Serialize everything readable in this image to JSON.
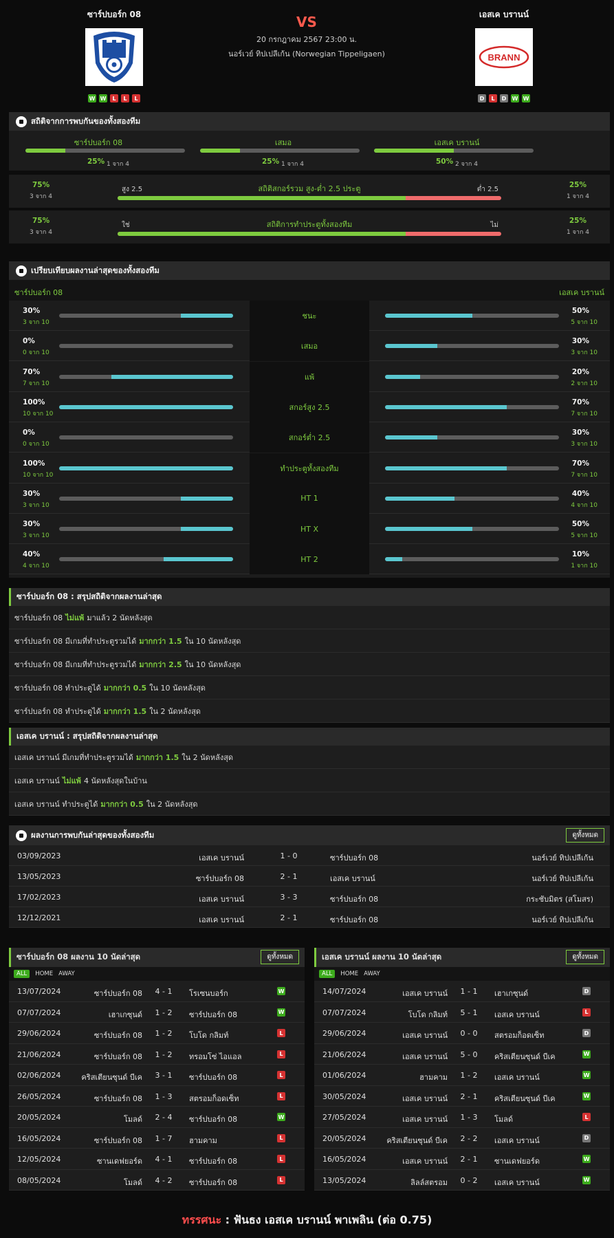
{
  "home": {
    "name": "ซาร์ปบอร์ก 08",
    "form": [
      "W",
      "W",
      "L",
      "L",
      "L"
    ]
  },
  "away": {
    "name": "เอสเค บรานน์",
    "form": [
      "D",
      "L",
      "D",
      "W",
      "W"
    ],
    "logo_text": "BRANN"
  },
  "match": {
    "vs": "VS",
    "date": "20 กรกฎาคม 2567 23:00 น.",
    "league": "นอร์เวย์ ทิปเปลีเก้น (Norwegian Tippeligaen)"
  },
  "h2h_stats": {
    "title": "สถิติจากการพบกันของทั้งสองทีม",
    "cols": [
      {
        "label": "ซาร์ปบอร์ก 08",
        "pct": "25%",
        "of": "1 จาก 4",
        "fill": 0.25
      },
      {
        "label": "เสมอ",
        "pct": "25%",
        "of": "1 จาก 4",
        "fill": 0.25
      },
      {
        "label": "เอสเค บรานน์",
        "pct": "50%",
        "of": "2 จาก 4",
        "fill": 0.5
      }
    ],
    "ou": {
      "title": "สถิติสกอร์รวม สูง-ต่ำ 2.5 ประตู",
      "left_label": "สูง 2.5",
      "right_label": "ต่ำ 2.5",
      "lp": "75%",
      "lo": "3 จาก 4",
      "rp": "25%",
      "ro": "1 จาก 4",
      "fill": 0.75
    },
    "bts": {
      "title": "สถิติการทำประตูทั้งสองทีม",
      "left_label": "ใช่",
      "right_label": "ไม่",
      "lp": "75%",
      "lo": "3 จาก 4",
      "rp": "25%",
      "ro": "1 จาก 4",
      "fill": 0.75
    }
  },
  "compare": {
    "title": "เปรียบเทียบผลงานล่าสุดของทั้งสองทีม",
    "left": "ซาร์ปบอร์ก 08",
    "right": "เอสเค บรานน์",
    "rows": [
      {
        "label": "ชนะ",
        "lp": "30%",
        "ls": "3 จาก 10",
        "lf": 0.3,
        "rp": "50%",
        "rs": "5 จาก 10",
        "rf": 0.5
      },
      {
        "label": "เสมอ",
        "lp": "0%",
        "ls": "0 จาก 10",
        "lf": 0,
        "rp": "30%",
        "rs": "3 จาก 10",
        "rf": 0.3
      },
      {
        "label": "แพ้",
        "lp": "70%",
        "ls": "7 จาก 10",
        "lf": 0.7,
        "rp": "20%",
        "rs": "2 จาก 10",
        "rf": 0.2
      },
      {
        "label": "สกอร์สูง 2.5",
        "lp": "100%",
        "ls": "10 จาก 10",
        "lf": 1,
        "rp": "70%",
        "rs": "7 จาก 10",
        "rf": 0.7
      },
      {
        "label": "สกอร์ต่ำ 2.5",
        "lp": "0%",
        "ls": "0 จาก 10",
        "lf": 0,
        "rp": "30%",
        "rs": "3 จาก 10",
        "rf": 0.3
      },
      {
        "label": "ทำประตูทั้งสองทีม",
        "lp": "100%",
        "ls": "10 จาก 10",
        "lf": 1,
        "rp": "70%",
        "rs": "7 จาก 10",
        "rf": 0.7
      },
      {
        "label": "HT 1",
        "lp": "30%",
        "ls": "3 จาก 10",
        "lf": 0.3,
        "rp": "40%",
        "rs": "4 จาก 10",
        "rf": 0.4
      },
      {
        "label": "HT X",
        "lp": "30%",
        "ls": "3 จาก 10",
        "lf": 0.3,
        "rp": "50%",
        "rs": "5 จาก 10",
        "rf": 0.5
      },
      {
        "label": "HT 2",
        "lp": "40%",
        "ls": "4 จาก 10",
        "lf": 0.4,
        "rp": "10%",
        "rs": "1 จาก 10",
        "rf": 0.1
      }
    ]
  },
  "sum_home": {
    "title": "ซาร์ปบอร์ก 08 : สรุปสถิติจากผลงานล่าสุด",
    "rows": [
      [
        "ซาร์ปบอร์ก 08",
        "ไม่แพ้",
        "มาแล้ว 2 นัดหลังสุด"
      ],
      [
        "ซาร์ปบอร์ก 08  มีเกมที่ทำประตูรวมได้",
        "มากกว่า 1.5",
        "ใน 10 นัดหลังสุด"
      ],
      [
        "ซาร์ปบอร์ก 08  มีเกมที่ทำประตูรวมได้",
        "มากกว่า 2.5",
        "ใน 10 นัดหลังสุด"
      ],
      [
        "ซาร์ปบอร์ก 08  ทำประตูได้",
        "มากกว่า 0.5",
        "ใน 10 นัดหลังสุด"
      ],
      [
        "ซาร์ปบอร์ก 08  ทำประตูได้",
        "มากกว่า 1.5",
        "ใน 2 นัดหลังสุด"
      ]
    ]
  },
  "sum_away": {
    "title": "เอสเค บรานน์ : สรุปสถิติจากผลงานล่าสุด",
    "rows": [
      [
        "เอสเค บรานน์  มีเกมที่ทำประตูรวมได้",
        "มากกว่า 1.5",
        "ใน 2 นัดหลังสุด"
      ],
      [
        "เอสเค บรานน์",
        "ไม่แพ้",
        "4 นัดหลังสุดในบ้าน"
      ],
      [
        "เอสเค บรานน์  ทำประตูได้",
        "มากกว่า 0.5",
        "ใน 2 นัดหลังสุด"
      ]
    ]
  },
  "h2h": {
    "title": "ผลงานการพบกันล่าสุดของทั้งสองทีม",
    "view_all": "ดูทั้งหมด",
    "rows": [
      [
        "03/09/2023",
        "เอสเค บรานน์",
        "1 - 0",
        "ซาร์ปบอร์ก 08",
        "นอร์เวย์ ทิปเปลีเก้น"
      ],
      [
        "13/05/2023",
        "ซาร์ปบอร์ก 08",
        "2 - 1",
        "เอสเค บรานน์",
        "นอร์เวย์ ทิปเปลีเก้น"
      ],
      [
        "17/02/2023",
        "เอสเค บรานน์",
        "3 - 3",
        "ซาร์ปบอร์ก 08",
        "กระชับมิตร (สโมสร)"
      ],
      [
        "12/12/2021",
        "เอสเค บรานน์",
        "2 - 1",
        "ซาร์ปบอร์ก 08",
        "นอร์เวย์ ทิปเปลีเก้น"
      ]
    ]
  },
  "last10_home": {
    "title": "ซาร์ปบอร์ก 08 ผลงาน 10 นัดล่าสุด",
    "view_all": "ดูทั้งหมด",
    "tabs": [
      "ALL",
      "HOME",
      "AWAY"
    ],
    "rows": [
      [
        "13/07/2024",
        "ซาร์ปบอร์ก 08",
        "4 - 1",
        "โรเซนบอร์ก",
        "W"
      ],
      [
        "07/07/2024",
        "เฮาเกซุนด์",
        "1 - 2",
        "ซาร์ปบอร์ก 08",
        "W"
      ],
      [
        "29/06/2024",
        "ซาร์ปบอร์ก 08",
        "1 - 2",
        "โบโด กลิมท์",
        "L"
      ],
      [
        "21/06/2024",
        "ซาร์ปบอร์ก 08",
        "1 - 2",
        "ทรอมโซ่ ไอแอล",
        "L"
      ],
      [
        "02/06/2024",
        "คริสเตียนซุนด์ บีเค",
        "3 - 1",
        "ซาร์ปบอร์ก 08",
        "L"
      ],
      [
        "26/05/2024",
        "ซาร์ปบอร์ก 08",
        "1 - 3",
        "สตรอมก็อดเซ็ท",
        "L"
      ],
      [
        "20/05/2024",
        "โมลด์",
        "2 - 4",
        "ซาร์ปบอร์ก 08",
        "W"
      ],
      [
        "16/05/2024",
        "ซาร์ปบอร์ก 08",
        "1 - 7",
        "ฮามคาม",
        "L"
      ],
      [
        "12/05/2024",
        "ซานเดฟยอร์ด",
        "4 - 1",
        "ซาร์ปบอร์ก 08",
        "L"
      ],
      [
        "08/05/2024",
        "โมลด์",
        "4 - 2",
        "ซาร์ปบอร์ก 08",
        "L"
      ]
    ]
  },
  "last10_away": {
    "title": "เอสเค บรานน์ ผลงาน 10 นัดล่าสุด",
    "view_all": "ดูทั้งหมด",
    "tabs": [
      "ALL",
      "HOME",
      "AWAY"
    ],
    "rows": [
      [
        "14/07/2024",
        "เอสเค บรานน์",
        "1 - 1",
        "เฮาเกซุนด์",
        "D"
      ],
      [
        "07/07/2024",
        "โบโด กลิมท์",
        "5 - 1",
        "เอสเค บรานน์",
        "L"
      ],
      [
        "29/06/2024",
        "เอสเค บรานน์",
        "0 - 0",
        "สตรอมก็อดเซ็ท",
        "D"
      ],
      [
        "21/06/2024",
        "เอสเค บรานน์",
        "5 - 0",
        "คริสเตียนซุนด์ บีเค",
        "W"
      ],
      [
        "01/06/2024",
        "ฮามคาม",
        "1 - 2",
        "เอสเค บรานน์",
        "W"
      ],
      [
        "30/05/2024",
        "เอสเค บรานน์",
        "2 - 1",
        "คริสเตียนซุนด์ บีเค",
        "W"
      ],
      [
        "27/05/2024",
        "เอสเค บรานน์",
        "1 - 3",
        "โมลด์",
        "L"
      ],
      [
        "20/05/2024",
        "คริสเตียนซุนด์ บีเค",
        "2 - 2",
        "เอสเค บรานน์",
        "D"
      ],
      [
        "16/05/2024",
        "เอสเค บรานน์",
        "2 - 1",
        "ซานเดฟยอร์ด",
        "W"
      ],
      [
        "13/05/2024",
        "ลิลล์สตรอม",
        "0 - 2",
        "เอสเค บรานน์",
        "W"
      ]
    ]
  },
  "tip": {
    "label": "ทรรศนะ",
    "sep": " :  ",
    "text": "ฟันธง เอสเค บรานน์ พาเพลิน (ต่อ 0.75)"
  }
}
